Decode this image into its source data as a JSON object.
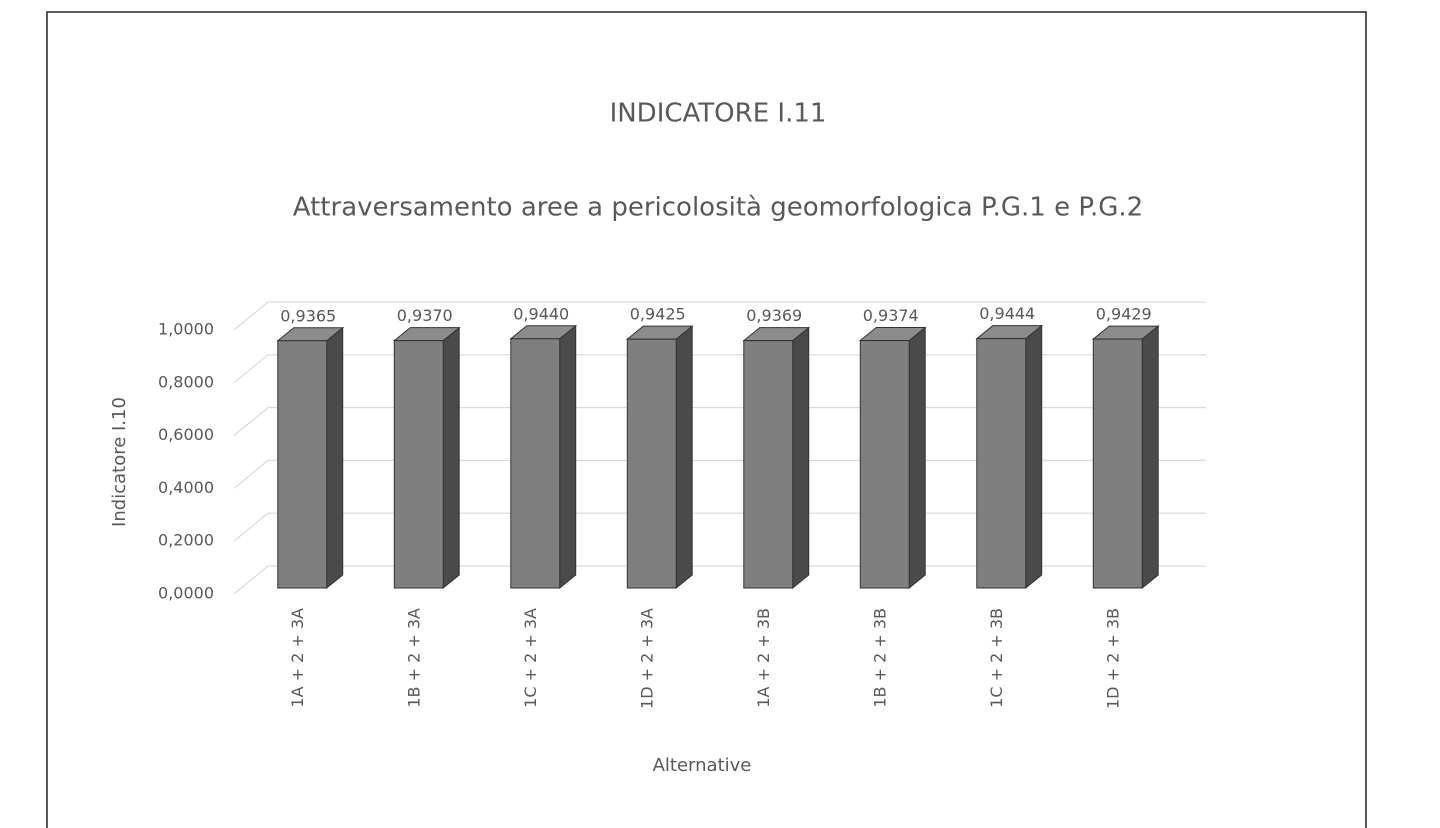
{
  "chart_data": {
    "type": "bar3d",
    "title": "INDICATORE I.11",
    "subtitle": "Attraversamento aree a pericolosità geomorfologica P.G.1 e P.G.2",
    "x_label": "Alternative",
    "y_label": "Indicatore I.10",
    "categories": [
      "1A + 2 + 3A",
      "1B + 2 + 3A",
      "1C + 2 + 3A",
      "1D + 2 + 3A",
      "1A + 2 + 3B",
      "1B + 2 + 3B",
      "1C + 2 + 3B",
      "1D + 2 + 3B"
    ],
    "values": [
      0.9365,
      0.937,
      0.944,
      0.9425,
      0.9369,
      0.9374,
      0.9444,
      0.9429
    ],
    "value_labels": [
      "0,9365",
      "0,9370",
      "0,9440",
      "0,9425",
      "0,9369",
      "0,9374",
      "0,9444",
      "0,9429"
    ],
    "color": "#7f7f7f",
    "ylim": [
      0,
      1
    ],
    "yticks": [
      {
        "value": 0,
        "label": "0,0000"
      },
      {
        "value": 0.2,
        "label": "0,2000"
      },
      {
        "value": 0.4,
        "label": "0,4000"
      },
      {
        "value": 0.6,
        "label": "0,6000"
      },
      {
        "value": 0.8,
        "label": "0,8000"
      },
      {
        "value": 1,
        "label": "1,0000"
      }
    ],
    "grid": true
  }
}
